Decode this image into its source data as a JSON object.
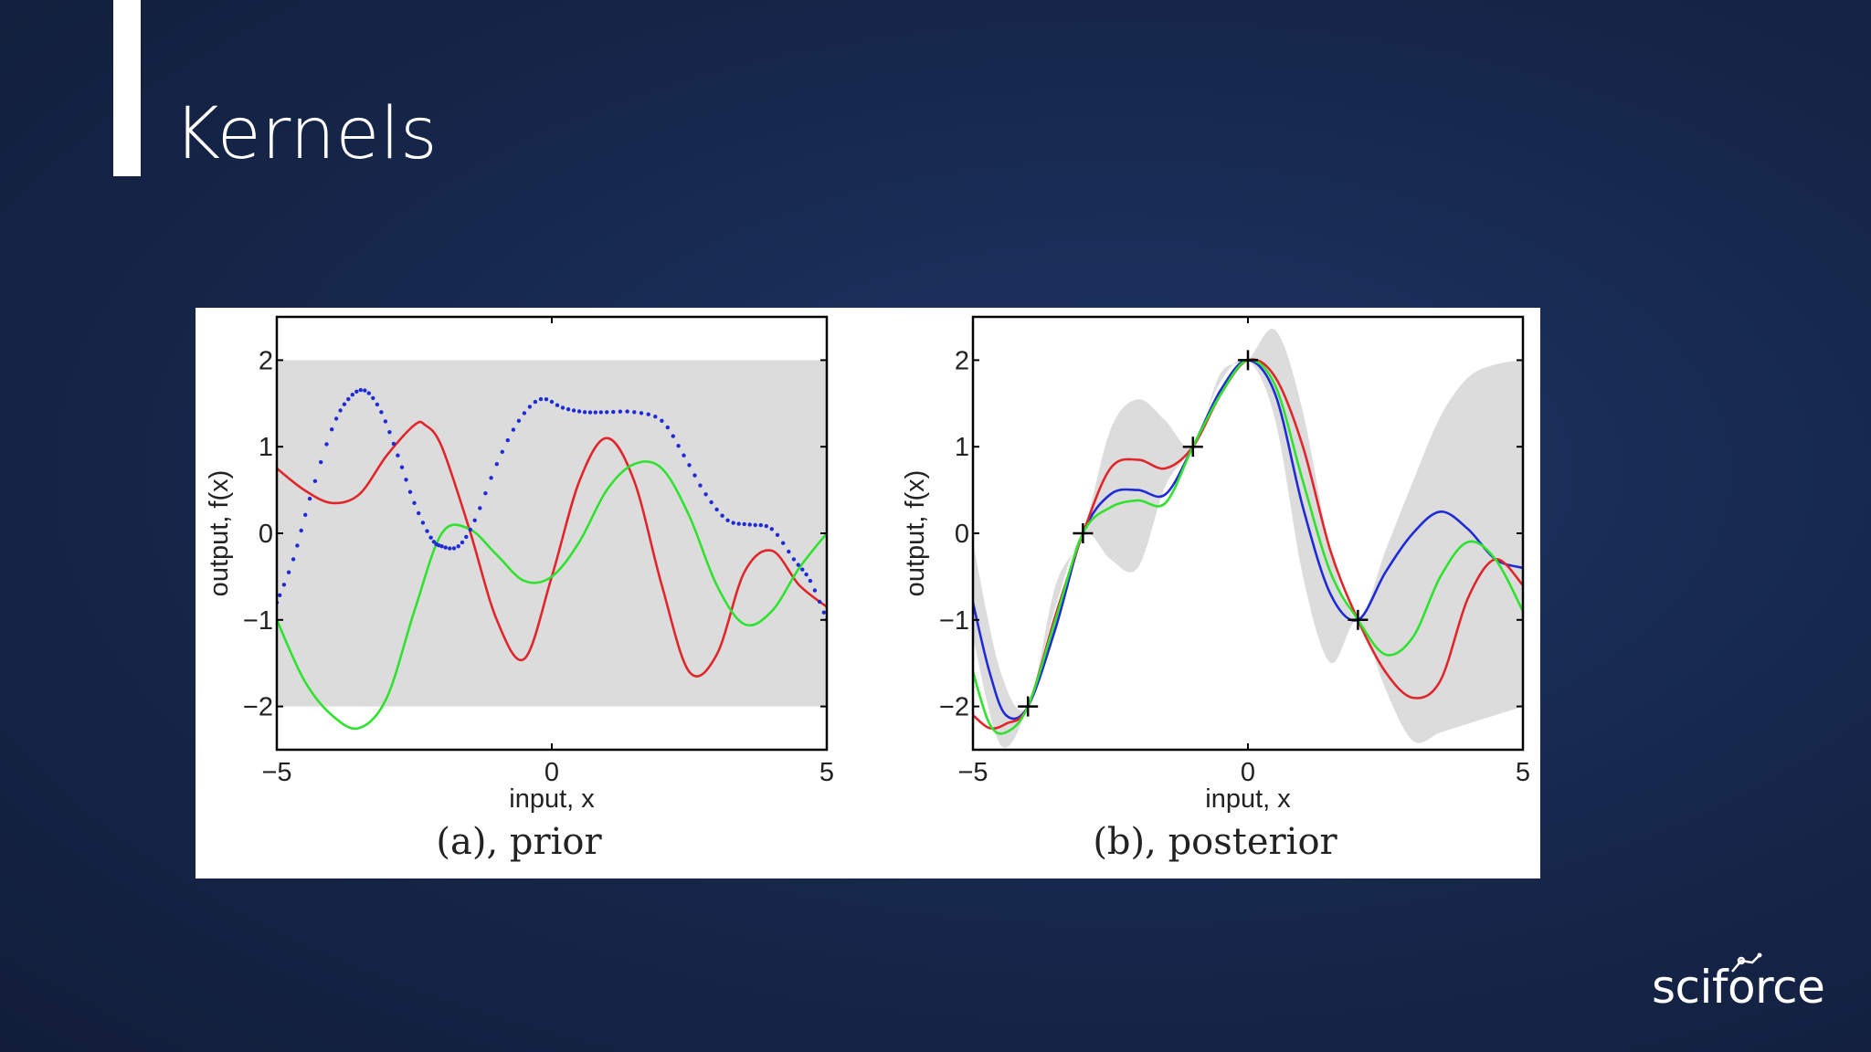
{
  "slide": {
    "title": "Kernels"
  },
  "brand": {
    "logo_text": "sciforce",
    "logo_icon": "node-graph-icon"
  },
  "colors": {
    "background": "#17294f",
    "band": "#dcdcdc",
    "red": "#e0262b",
    "green": "#2ee22e",
    "blue": "#1f2bd6",
    "axis": "#000000"
  },
  "chart_data": [
    {
      "type": "line",
      "title": "(a), prior",
      "xlabel": "input, x",
      "ylabel": "output, f(x)",
      "xlim": [
        -5,
        5
      ],
      "ylim": [
        -2.5,
        2.5
      ],
      "xticks": [
        -5,
        0,
        5
      ],
      "xtick_labels": [
        "−5",
        "0",
        "5"
      ],
      "yticks": [
        -2,
        -1,
        0,
        1,
        2
      ],
      "ytick_labels": [
        "−2",
        "−1",
        "0",
        "1",
        "2"
      ],
      "band": {
        "lower": -2,
        "upper": 2
      },
      "series": [
        {
          "color": "red",
          "style": "solid",
          "x": [
            -5,
            -4.5,
            -4,
            -3.5,
            -3,
            -2.5,
            -2.3,
            -2,
            -1.5,
            -1,
            -0.5,
            0,
            0.5,
            1,
            1.5,
            2,
            2.5,
            3,
            3.5,
            4,
            4.5,
            5
          ],
          "y": [
            0.75,
            0.5,
            0.35,
            0.45,
            0.9,
            1.25,
            1.25,
            1.0,
            0.05,
            -1.0,
            -1.45,
            -0.5,
            0.6,
            1.1,
            0.6,
            -0.6,
            -1.6,
            -1.4,
            -0.45,
            -0.2,
            -0.6,
            -0.85
          ]
        },
        {
          "color": "green",
          "style": "solid",
          "x": [
            -5,
            -4.5,
            -4,
            -3.5,
            -3,
            -2.5,
            -2,
            -1.5,
            -1,
            -0.5,
            0,
            0.5,
            1,
            1.5,
            2,
            2.5,
            3,
            3.5,
            4,
            4.5,
            5
          ],
          "y": [
            -1.0,
            -1.7,
            -2.1,
            -2.25,
            -1.9,
            -0.9,
            0.0,
            0.05,
            -0.25,
            -0.55,
            -0.5,
            -0.1,
            0.5,
            0.8,
            0.75,
            0.2,
            -0.6,
            -1.05,
            -0.9,
            -0.4,
            0.0
          ]
        },
        {
          "color": "blue",
          "style": "dotted",
          "x": [
            -5,
            -4.7,
            -4.4,
            -4,
            -3.7,
            -3.4,
            -3.1,
            -2.8,
            -2.5,
            -2.2,
            -2,
            -1.7,
            -1.4,
            -1,
            -0.6,
            -0.2,
            0.2,
            0.6,
            1,
            1.5,
            2,
            2.4,
            2.8,
            3.2,
            3.6,
            4,
            4.4,
            4.7,
            5
          ],
          "y": [
            -0.8,
            -0.3,
            0.4,
            1.2,
            1.55,
            1.65,
            1.4,
            0.9,
            0.35,
            -0.05,
            -0.15,
            -0.15,
            0.15,
            0.8,
            1.3,
            1.55,
            1.45,
            1.4,
            1.4,
            1.4,
            1.3,
            0.9,
            0.45,
            0.15,
            0.1,
            0.05,
            -0.3,
            -0.55,
            -1.0
          ]
        }
      ]
    },
    {
      "type": "line",
      "title": "(b), posterior",
      "xlabel": "input, x",
      "ylabel": "output, f(x)",
      "xlim": [
        -5,
        5
      ],
      "ylim": [
        -2.5,
        2.5
      ],
      "xticks": [
        -5,
        0,
        5
      ],
      "xtick_labels": [
        "−5",
        "0",
        "5"
      ],
      "yticks": [
        -2,
        -1,
        0,
        1,
        2
      ],
      "ytick_labels": [
        "−2",
        "−1",
        "0",
        "1",
        "2"
      ],
      "observations": {
        "x": [
          -4,
          -3,
          -1,
          0,
          2
        ],
        "y": [
          -2,
          0,
          1,
          2,
          -1
        ]
      },
      "band": {
        "x": [
          -5,
          -4.5,
          -4,
          -3.5,
          -3,
          -2.5,
          -2,
          -1.5,
          -1,
          -0.5,
          0,
          0.5,
          1,
          1.5,
          2,
          2.5,
          3,
          3.5,
          4,
          4.5,
          5
        ],
        "lower": [
          -1.2,
          -2.45,
          -2.0,
          -0.85,
          0.0,
          -0.3,
          -0.4,
          0.55,
          1.0,
          1.75,
          2.0,
          1.3,
          -0.5,
          -1.5,
          -1.0,
          -1.8,
          -2.4,
          -2.3,
          -2.2,
          -2.1,
          -2.0
        ],
        "upper": [
          -0.1,
          -1.6,
          -2.0,
          -0.6,
          0.0,
          1.2,
          1.55,
          1.3,
          1.0,
          1.85,
          2.0,
          2.35,
          1.4,
          -0.2,
          -1.0,
          -0.2,
          0.6,
          1.35,
          1.8,
          1.95,
          2.0
        ]
      },
      "series": [
        {
          "color": "blue",
          "x": [
            -5,
            -4.7,
            -4.4,
            -4,
            -3.5,
            -3,
            -2.5,
            -2,
            -1.5,
            -1,
            -0.5,
            0,
            0.5,
            1,
            1.5,
            2,
            2.5,
            3,
            3.5,
            4,
            4.5,
            5
          ],
          "y": [
            -0.8,
            -1.6,
            -2.1,
            -2.0,
            -1.1,
            0.0,
            0.45,
            0.5,
            0.45,
            1.0,
            1.65,
            2.0,
            1.6,
            0.3,
            -0.7,
            -1.0,
            -0.45,
            0.0,
            0.25,
            0.05,
            -0.3,
            -0.4
          ]
        },
        {
          "color": "red",
          "x": [
            -5,
            -4.7,
            -4.4,
            -4,
            -3.5,
            -3,
            -2.5,
            -2,
            -1.5,
            -1,
            -0.5,
            0,
            0.5,
            1,
            1.5,
            2,
            2.5,
            3,
            3.5,
            4,
            4.5,
            5
          ],
          "y": [
            -2.1,
            -2.25,
            -2.2,
            -2.0,
            -0.95,
            0.0,
            0.75,
            0.85,
            0.75,
            1.0,
            1.6,
            2.0,
            1.8,
            1.0,
            -0.2,
            -1.0,
            -1.6,
            -1.9,
            -1.7,
            -0.75,
            -0.3,
            -0.6
          ]
        },
        {
          "color": "green",
          "x": [
            -5,
            -4.7,
            -4.4,
            -4,
            -3.5,
            -3,
            -2.5,
            -2,
            -1.5,
            -1,
            -0.5,
            0,
            0.5,
            1,
            1.5,
            2,
            2.5,
            3,
            3.5,
            4,
            4.5,
            5
          ],
          "y": [
            -1.6,
            -2.2,
            -2.3,
            -2.0,
            -1.0,
            0.0,
            0.3,
            0.38,
            0.35,
            1.0,
            1.6,
            2.0,
            1.7,
            0.6,
            -0.45,
            -1.0,
            -1.4,
            -1.2,
            -0.5,
            -0.1,
            -0.3,
            -0.9
          ]
        }
      ]
    }
  ]
}
